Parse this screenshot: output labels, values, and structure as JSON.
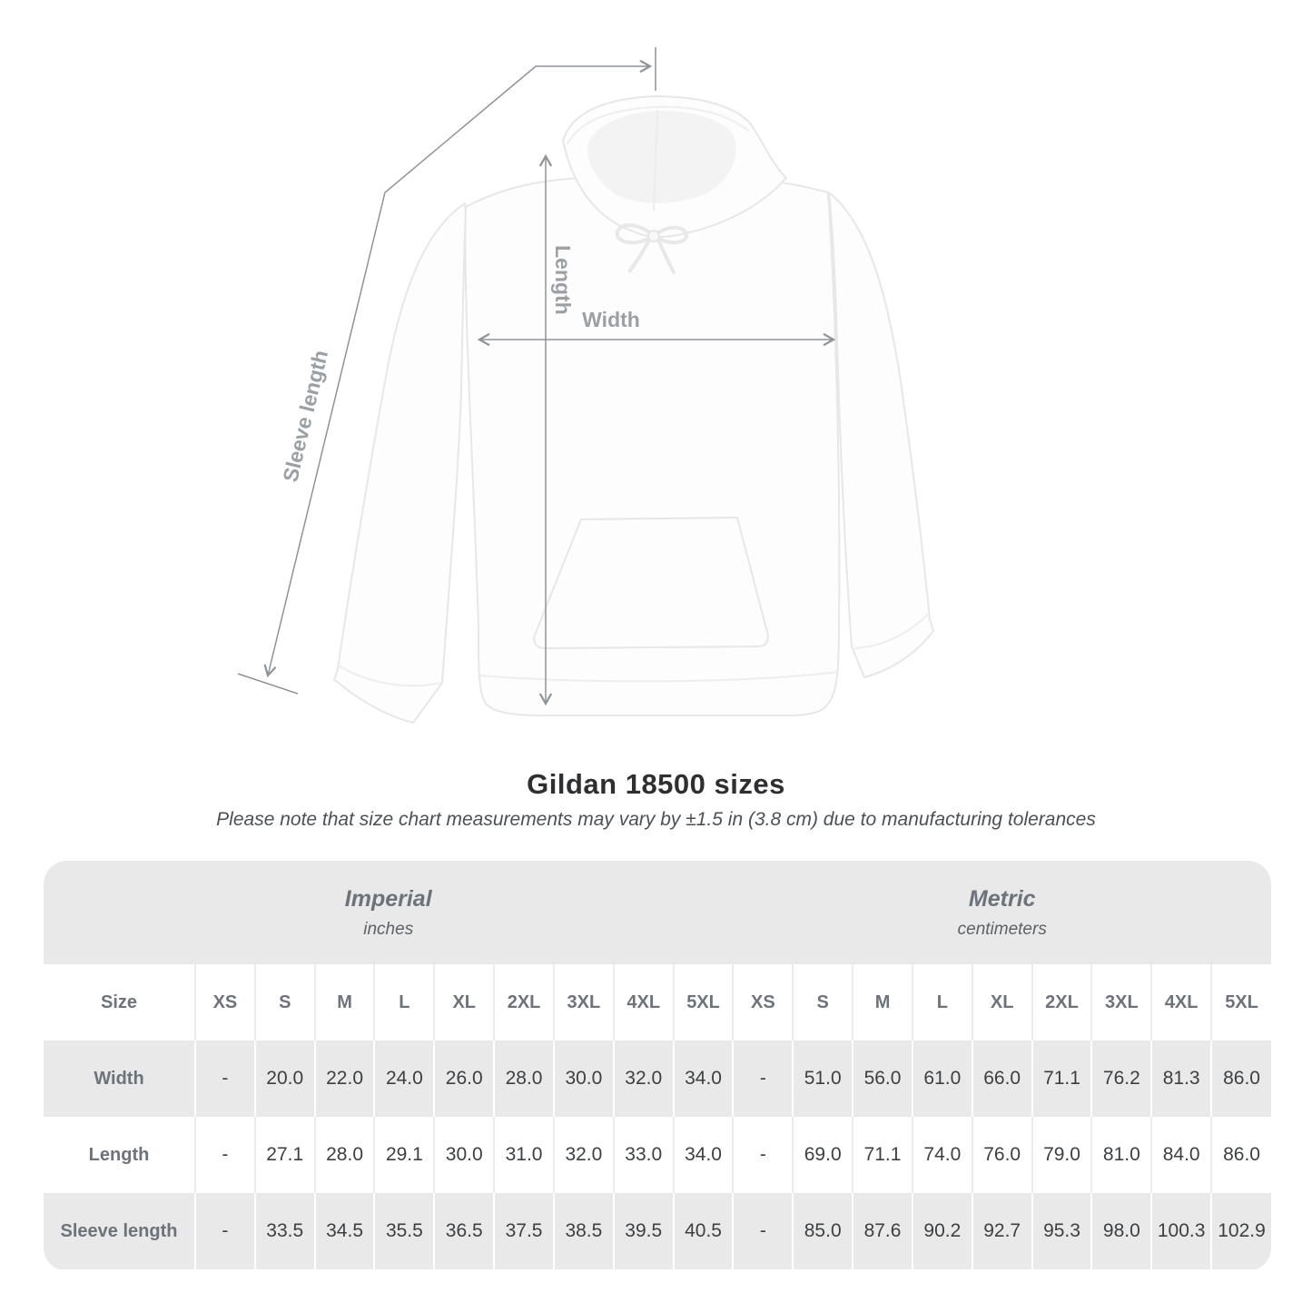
{
  "title": "Gildan 18500 sizes",
  "subtitle": "Please note that size chart measurements may vary by ±1.5 in (3.8 cm) due to manufacturing tolerances",
  "diagram": {
    "labels": {
      "sleeve_length": "Sleeve length",
      "length": "Length",
      "width": "Width"
    }
  },
  "colors": {
    "table_gray": "#e9e9e9",
    "header_text": "#6d737a",
    "value_text": "#3c4043",
    "annotation_gray": "#8e9399",
    "label_gray": "#9ba0a5"
  },
  "table": {
    "size_header": "Size",
    "unit_groups": [
      {
        "label": "Imperial",
        "sublabel": "inches"
      },
      {
        "label": "Metric",
        "sublabel": "centimeters"
      }
    ],
    "sizes": [
      "XS",
      "S",
      "M",
      "L",
      "XL",
      "2XL",
      "3XL",
      "4XL",
      "5XL"
    ],
    "rows": [
      {
        "label": "Width",
        "imperial": [
          "-",
          "20.0",
          "22.0",
          "24.0",
          "26.0",
          "28.0",
          "30.0",
          "32.0",
          "34.0"
        ],
        "metric": [
          "-",
          "51.0",
          "56.0",
          "61.0",
          "66.0",
          "71.1",
          "76.2",
          "81.3",
          "86.0"
        ]
      },
      {
        "label": "Length",
        "imperial": [
          "-",
          "27.1",
          "28.0",
          "29.1",
          "30.0",
          "31.0",
          "32.0",
          "33.0",
          "34.0"
        ],
        "metric": [
          "-",
          "69.0",
          "71.1",
          "74.0",
          "76.0",
          "79.0",
          "81.0",
          "84.0",
          "86.0"
        ]
      },
      {
        "label": "Sleeve length",
        "imperial": [
          "-",
          "33.5",
          "34.5",
          "35.5",
          "36.5",
          "37.5",
          "38.5",
          "39.5",
          "40.5"
        ],
        "metric": [
          "-",
          "85.0",
          "87.6",
          "90.2",
          "92.7",
          "95.3",
          "98.0",
          "100.3",
          "102.9"
        ]
      }
    ]
  },
  "chart_data": {
    "type": "table",
    "title": "Gildan 18500 sizes",
    "columns": [
      "Size",
      "XS",
      "S",
      "M",
      "L",
      "XL",
      "2XL",
      "3XL",
      "4XL",
      "5XL"
    ],
    "imperial_unit": "inches",
    "metric_unit": "centimeters",
    "rows_imperial": [
      [
        "Width",
        null,
        20.0,
        22.0,
        24.0,
        26.0,
        28.0,
        30.0,
        32.0,
        34.0
      ],
      [
        "Length",
        null,
        27.1,
        28.0,
        29.1,
        30.0,
        31.0,
        32.0,
        33.0,
        34.0
      ],
      [
        "Sleeve length",
        null,
        33.5,
        34.5,
        35.5,
        36.5,
        37.5,
        38.5,
        39.5,
        40.5
      ]
    ],
    "rows_metric": [
      [
        "Width",
        null,
        51.0,
        56.0,
        61.0,
        66.0,
        71.1,
        76.2,
        81.3,
        86.0
      ],
      [
        "Length",
        null,
        69.0,
        71.1,
        74.0,
        76.0,
        79.0,
        81.0,
        84.0,
        86.0
      ],
      [
        "Sleeve length",
        null,
        85.0,
        87.6,
        90.2,
        92.7,
        95.3,
        98.0,
        100.3,
        102.9
      ]
    ]
  }
}
